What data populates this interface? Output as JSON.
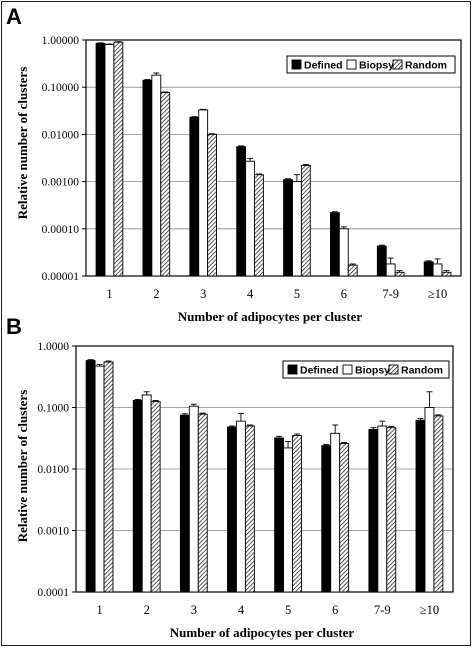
{
  "chart_data": [
    {
      "panel": "A",
      "type": "bar",
      "scale": "log",
      "ylim": [
        1e-05,
        1
      ],
      "yticks": [
        "1.00000",
        "0.10000",
        "0.01000",
        "0.00100",
        "0.00010",
        "0.00001"
      ],
      "grid": true,
      "legend_placement": "top-right",
      "xlabel": "Number of adipocytes per cluster",
      "ylabel": "Relative number of clusters",
      "categories": [
        "1",
        "2",
        "3",
        "4",
        "5",
        "6",
        "7-9",
        "≥10"
      ],
      "series": [
        {
          "name": "Defined",
          "pattern": "solid",
          "values": [
            0.85,
            0.14,
            0.023,
            0.0055,
            0.0011,
            0.00022,
            4.3e-05,
            2e-05
          ],
          "errors": [
            0.02,
            0.005,
            0.0008,
            0.0002,
            5e-05,
            1e-05,
            2e-06,
            1e-06
          ]
        },
        {
          "name": "Biopsy",
          "pattern": "open",
          "values": [
            0.8,
            0.18,
            0.033,
            0.0027,
            0.001,
            0.0001,
            1.8e-05,
            1.8e-05
          ],
          "errors": [
            0.02,
            0.02,
            0.001,
            0.0004,
            0.0004,
            1e-05,
            6e-06,
            5e-06
          ]
        },
        {
          "name": "Random",
          "pattern": "hatched",
          "values": [
            0.9,
            0.077,
            0.01,
            0.0014,
            0.0022,
            1.7e-05,
            1.2e-05,
            1.2e-05
          ],
          "errors": [
            0.02,
            0.002,
            0.0003,
            5e-05,
            0.0001,
            1e-06,
            1e-06,
            1e-06
          ]
        }
      ]
    },
    {
      "panel": "B",
      "type": "bar",
      "scale": "log",
      "ylim": [
        0.0001,
        1
      ],
      "yticks": [
        "1.0000",
        "0.1000",
        "0.0100",
        "0.0010",
        "0.0001"
      ],
      "grid": true,
      "legend_placement": "top-right",
      "xlabel": "Number of adipocytes per cluster",
      "ylabel": "Relative number of clusters",
      "categories": [
        "1",
        "2",
        "3",
        "4",
        "5",
        "6",
        "7-9",
        "≥10"
      ],
      "series": [
        {
          "name": "Defined",
          "pattern": "solid",
          "values": [
            0.58,
            0.13,
            0.075,
            0.048,
            0.032,
            0.024,
            0.044,
            0.062
          ],
          "errors": [
            0.02,
            0.005,
            0.004,
            0.002,
            0.002,
            0.001,
            0.003,
            0.004
          ]
        },
        {
          "name": "Biopsy",
          "pattern": "open",
          "values": [
            0.47,
            0.16,
            0.105,
            0.06,
            0.022,
            0.038,
            0.05,
            0.1
          ],
          "errors": [
            0.03,
            0.02,
            0.008,
            0.02,
            0.006,
            0.014,
            0.01,
            0.08
          ]
        },
        {
          "name": "Random",
          "pattern": "hatched",
          "values": [
            0.55,
            0.125,
            0.078,
            0.05,
            0.035,
            0.026,
            0.047,
            0.073
          ],
          "errors": [
            0.02,
            0.005,
            0.003,
            0.002,
            0.002,
            0.001,
            0.002,
            0.003
          ]
        }
      ]
    }
  ]
}
